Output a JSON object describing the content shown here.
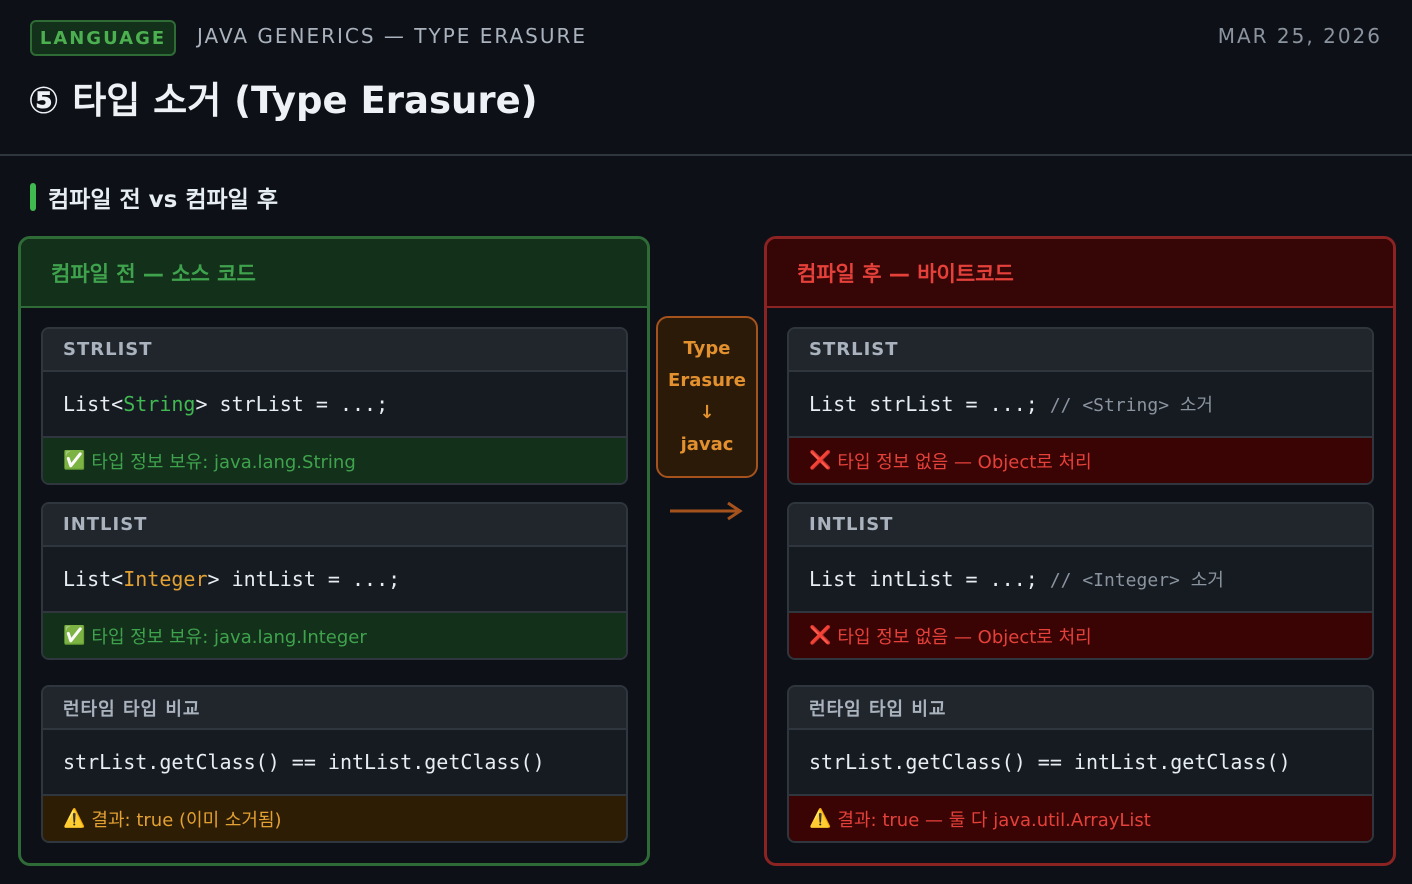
{
  "header": {
    "badge": "LANGUAGE",
    "breadcrumb": "JAVA GENERICS — TYPE ERASURE",
    "date": "MAR 25, 2026",
    "title": "⑤ 타입 소거 (Type Erasure)"
  },
  "section": {
    "title": "컴파일 전 vs 컴파일 후"
  },
  "left": {
    "title": "컴파일 전 — 소스 코드",
    "cards": [
      {
        "label": "STRLIST",
        "code_pre": "List<",
        "code_type": "String",
        "code_post": "> strList = ...;",
        "status_icon": "✅",
        "status": "타입 정보 보유: java.lang.String"
      },
      {
        "label": "INTLIST",
        "code_pre": "List<",
        "code_type": "Integer",
        "code_post": "> intList = ...;",
        "status_icon": "✅",
        "status": "타입 정보 보유: java.lang.Integer"
      },
      {
        "label": "런타임 타입 비교",
        "code": "strList.getClass() == intList.getClass()",
        "status_icon": "⚠️",
        "status": "결과: true (이미 소거됨)"
      }
    ]
  },
  "middle": {
    "line1": "Type",
    "line2": "Erasure",
    "arrow": "↓",
    "line3": "javac"
  },
  "right": {
    "title": "컴파일 후 — 바이트코드",
    "cards": [
      {
        "label": "STRLIST",
        "code": "List strList = ...; ",
        "comment": "// <String> 소거",
        "status_icon": "❌",
        "status": "타입 정보 없음 — Object로 처리"
      },
      {
        "label": "INTLIST",
        "code": "List intList = ...; ",
        "comment": "// <Integer> 소거",
        "status_icon": "❌",
        "status": "타입 정보 없음 — Object로 처리"
      },
      {
        "label": "런타임 타입 비교",
        "code": "strList.getClass() == intList.getClass()",
        "status_icon": "⚠️",
        "status": "결과: true — 둘 다 java.util.ArrayList"
      }
    ]
  },
  "colors": {
    "green": "#3fb950",
    "red": "#e5413a",
    "orange": "#e3a033",
    "background": "#0d1117"
  }
}
